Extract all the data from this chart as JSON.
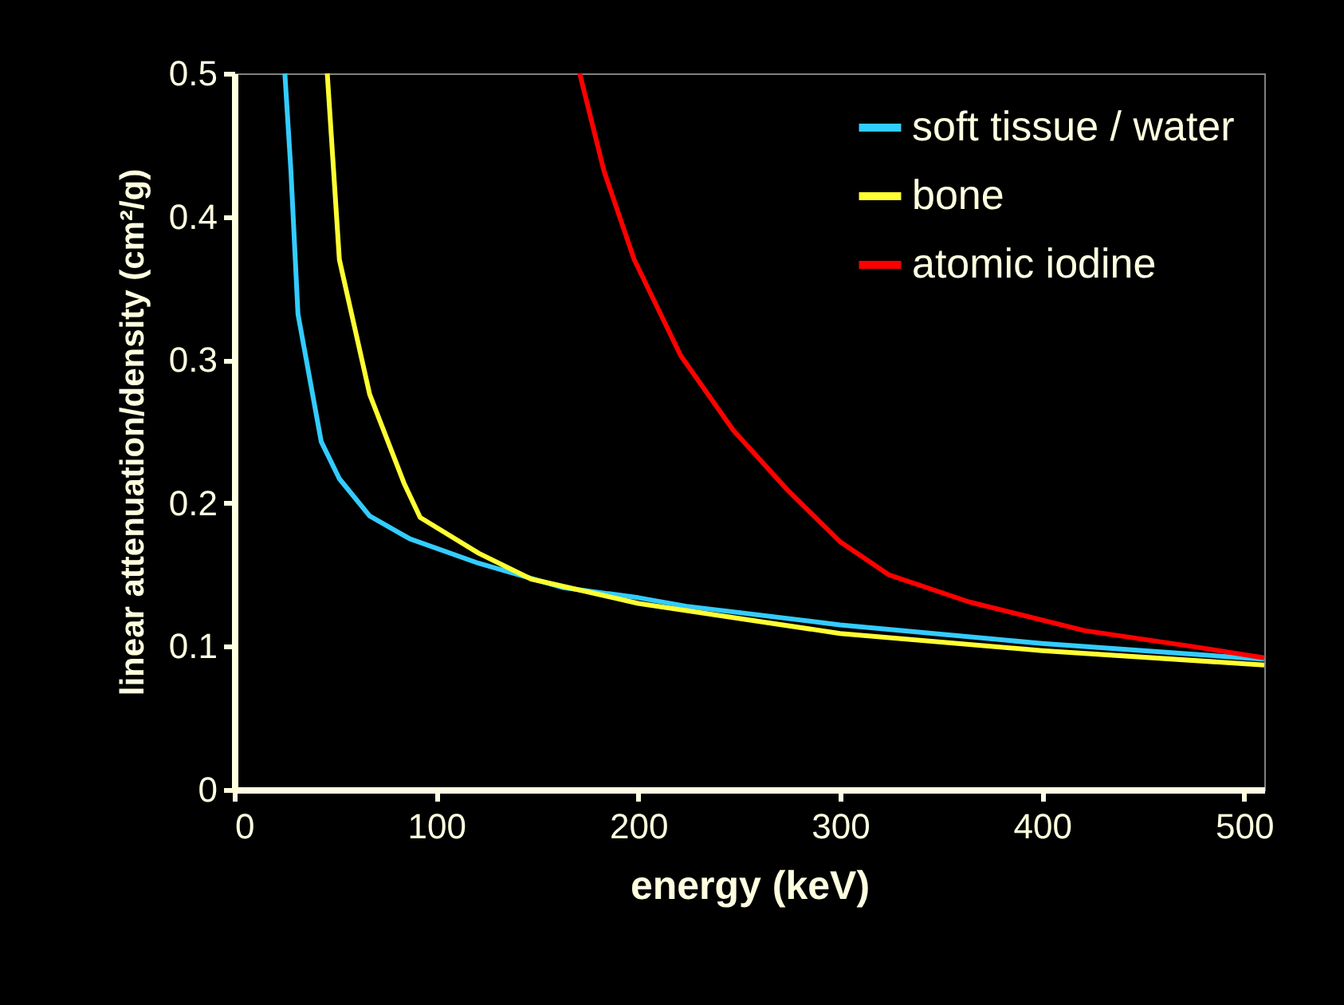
{
  "chart_data": {
    "type": "line",
    "xlabel": "energy (keV)",
    "ylabel": "linear attenuation/density (cm²/g)",
    "xlim": [
      0,
      510
    ],
    "ylim": [
      0,
      0.5
    ],
    "xticks": [
      0,
      100,
      200,
      300,
      400,
      500
    ],
    "yticks": [
      0,
      0.1,
      0.2,
      0.3,
      0.4,
      0.5
    ],
    "grid": false,
    "legend": "top right",
    "marker": "none",
    "line_style": "solid",
    "series": [
      {
        "name": "soft tissue / water",
        "color": "#33ccff",
        "x": [
          25,
          28,
          31.5,
          43,
          52,
          67,
          87,
          121,
          163,
          200,
          224,
          300,
          400,
          510
        ],
        "values": [
          0.5,
          0.432,
          0.332,
          0.243,
          0.217,
          0.191,
          0.175,
          0.158,
          0.141,
          0.134,
          0.128,
          0.115,
          0.102,
          0.091
        ]
      },
      {
        "name": "bone",
        "color": "#ffff33",
        "x": [
          46,
          52,
          67,
          84,
          92,
          121,
          147,
          200,
          300,
          400,
          510
        ],
        "values": [
          0.5,
          0.37,
          0.276,
          0.214,
          0.19,
          0.165,
          0.147,
          0.13,
          0.109,
          0.097,
          0.087
        ]
      },
      {
        "name": "atomic iodine",
        "color": "#ff0000",
        "x": [
          171,
          183,
          198,
          221,
          247,
          274,
          300,
          324,
          364,
          421,
          474,
          510
        ],
        "values": [
          0.5,
          0.432,
          0.37,
          0.303,
          0.251,
          0.209,
          0.173,
          0.15,
          0.131,
          0.111,
          0.1,
          0.092
        ]
      }
    ]
  }
}
